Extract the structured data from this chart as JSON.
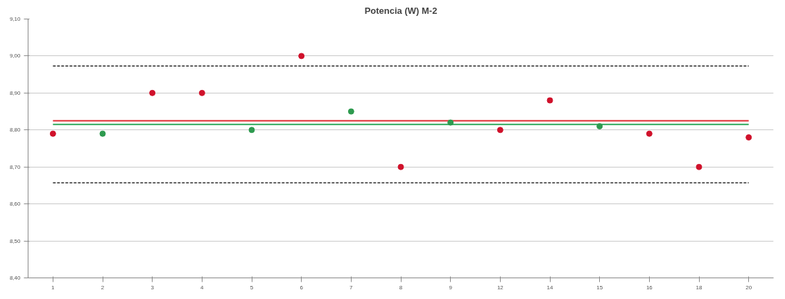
{
  "chart_data": {
    "type": "scatter",
    "title": "Potencia (W) M-2",
    "categories": [
      "1",
      "2",
      "3",
      "4",
      "5",
      "6",
      "7",
      "8",
      "9",
      "12",
      "14",
      "15",
      "16",
      "18",
      "20"
    ],
    "values": [
      8.79,
      8.79,
      8.9,
      8.9,
      8.8,
      9.0,
      8.85,
      8.7,
      8.82,
      8.8,
      8.88,
      8.81,
      8.79,
      8.7,
      8.78
    ],
    "colors": [
      "#d0112b",
      "#2e9a4f",
      "#d0112b",
      "#d0112b",
      "#2e9a4f",
      "#d0112b",
      "#2e9a4f",
      "#d0112b",
      "#2e9a4f",
      "#d0112b",
      "#d0112b",
      "#2e9a4f",
      "#d0112b",
      "#d0112b",
      "#d0112b"
    ],
    "marker": "circle",
    "ylim": [
      8.4,
      9.1
    ],
    "yticks": [
      {
        "value": 8.4,
        "label": "8,40"
      },
      {
        "value": 8.5,
        "label": "8,50"
      },
      {
        "value": 8.6,
        "label": "8,60"
      },
      {
        "value": 8.7,
        "label": "8,70"
      },
      {
        "value": 8.8,
        "label": "8,80"
      },
      {
        "value": 8.9,
        "label": "8,90"
      },
      {
        "value": 9.0,
        "label": "9,00"
      },
      {
        "value": 9.1,
        "label": "9,10"
      }
    ],
    "grid": "y",
    "ref_lines": [
      {
        "axis": "y",
        "value": 8.973,
        "color": "#000000",
        "line_style": "dashed"
      },
      {
        "axis": "y",
        "value": 8.657,
        "color": "#000000",
        "line_style": "dashed"
      },
      {
        "axis": "y",
        "value": 8.825,
        "color": "#e0282e",
        "line_style": "solid"
      },
      {
        "axis": "y",
        "value": 8.815,
        "color": "#2ca85a",
        "line_style": "solid"
      }
    ]
  }
}
